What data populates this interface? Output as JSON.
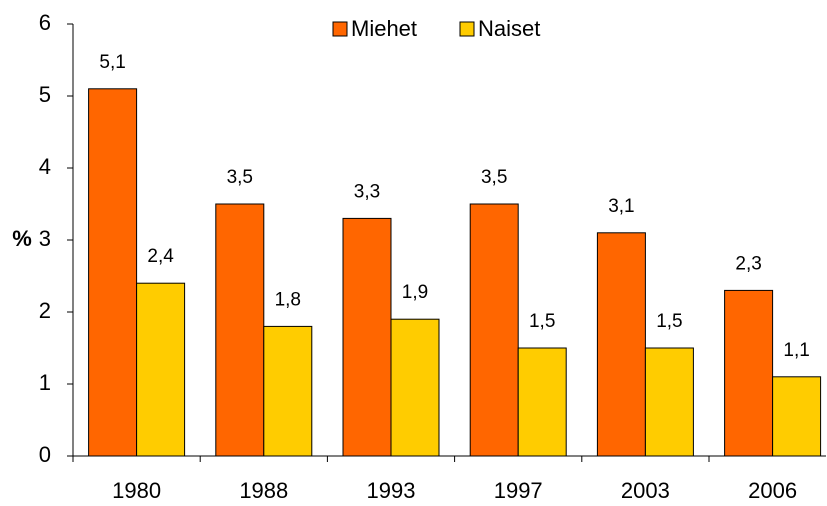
{
  "chart_data": {
    "type": "bar",
    "ylabel": "%",
    "categories": [
      "1980",
      "1988",
      "1993",
      "1997",
      "2003",
      "2006"
    ],
    "series": [
      {
        "name": "Miehet",
        "color": "#ff6600",
        "values": [
          5.1,
          3.5,
          3.3,
          3.5,
          3.1,
          2.3
        ],
        "value_labels": [
          "5,1",
          "3,5",
          "3,3",
          "3,5",
          "3,1",
          "2,3"
        ]
      },
      {
        "name": "Naiset",
        "color": "#ffcc00",
        "values": [
          2.4,
          1.8,
          1.9,
          1.5,
          1.5,
          1.1
        ],
        "value_labels": [
          "2,4",
          "1,8",
          "1,9",
          "1,5",
          "1,5",
          "1,1"
        ]
      }
    ],
    "ylim": [
      0,
      6
    ],
    "yticks": [
      0,
      1,
      2,
      3,
      4,
      5,
      6
    ],
    "grid": false,
    "legend": "top"
  }
}
